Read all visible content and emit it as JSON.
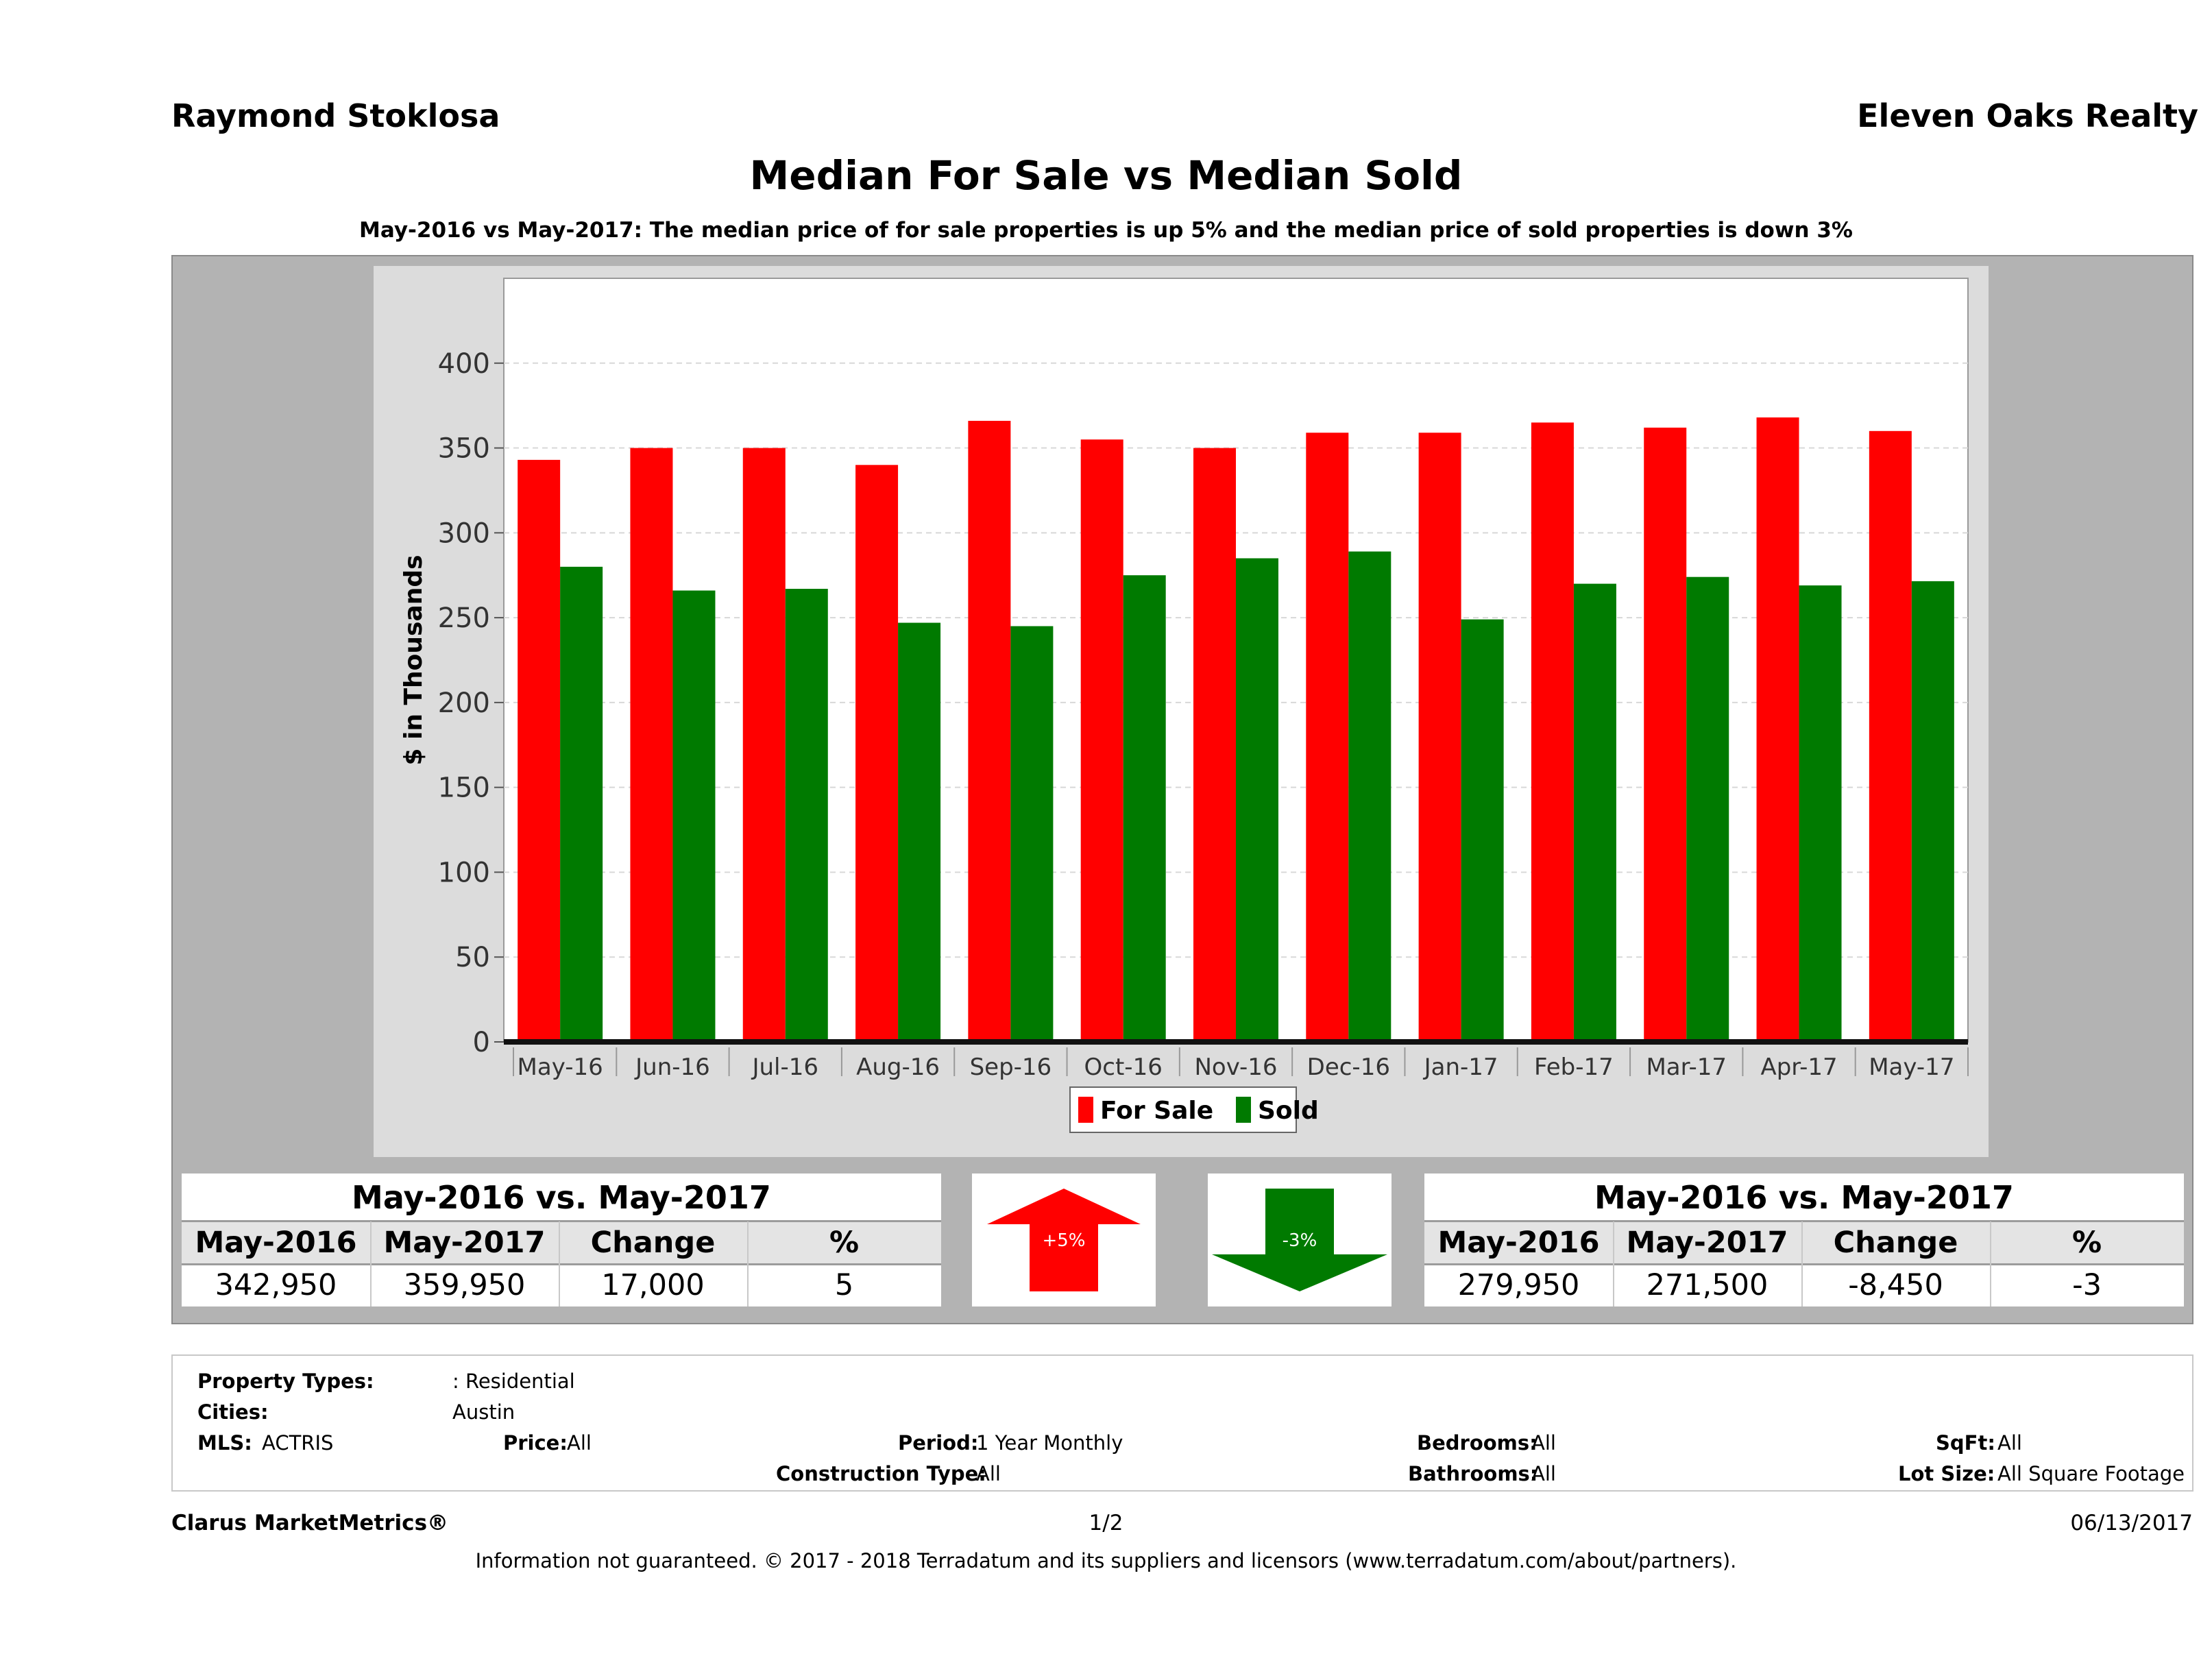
{
  "header": {
    "agent_name": "Raymond Stoklosa",
    "brokerage": "Eleven Oaks Realty"
  },
  "chart_data": {
    "type": "bar",
    "title": "Median For Sale vs Median Sold",
    "subtitle": "May-2016 vs May-2017: The median price of for sale properties is up 5% and the median price of sold properties is down 3%",
    "ylabel": "$ in Thousands",
    "xlabel": "",
    "ylim": [
      0,
      450
    ],
    "yticks": [
      0,
      50,
      100,
      150,
      200,
      250,
      300,
      350,
      400
    ],
    "grid": true,
    "legend_position": "bottom",
    "categories": [
      "May-16",
      "Jun-16",
      "Jul-16",
      "Aug-16",
      "Sep-16",
      "Oct-16",
      "Nov-16",
      "Dec-16",
      "Jan-17",
      "Feb-17",
      "Mar-17",
      "Apr-17",
      "May-17"
    ],
    "series": [
      {
        "name": "For Sale",
        "color": "#ff0000",
        "values": [
          343,
          350,
          350,
          340,
          366,
          355,
          350,
          359,
          359,
          365,
          362,
          368,
          360
        ]
      },
      {
        "name": "Sold",
        "color": "#007a00",
        "values": [
          280,
          266,
          267,
          247,
          245,
          275,
          285,
          289,
          249,
          270,
          274,
          269,
          271.5
        ]
      }
    ]
  },
  "for_sale_table": {
    "title": "May-2016 vs. May-2017",
    "headers": [
      "May-2016",
      "May-2017",
      "Change",
      "%"
    ],
    "values": [
      "342,950",
      "359,950",
      "17,000",
      "5"
    ]
  },
  "sold_table": {
    "title": "May-2016 vs. May-2017",
    "headers": [
      "May-2016",
      "May-2017",
      "Change",
      "%"
    ],
    "values": [
      "279,950",
      "271,500",
      "-8,450",
      "-3"
    ]
  },
  "arrows": {
    "up": {
      "label": "+5%",
      "color": "#ff0000",
      "icon": "arrow-up-icon"
    },
    "down": {
      "label": "-3%",
      "color": "#007a00",
      "icon": "arrow-down-icon"
    }
  },
  "criteria": {
    "property_types_label": "Property Types:",
    "property_types_value": ": Residential",
    "cities_label": "Cities:",
    "cities_value": "Austin",
    "mls_label": "MLS:",
    "mls_value": "ACTRIS",
    "price_label": "Price:",
    "price_value": "All",
    "period_label": "Period:",
    "period_value": "1 Year Monthly",
    "construction_label": "Construction Type:",
    "construction_value": "All",
    "bedrooms_label": "Bedrooms:",
    "bedrooms_value": "All",
    "bathrooms_label": "Bathrooms:",
    "bathrooms_value": "All",
    "sqft_label": "SqFt:",
    "sqft_value": "All",
    "lotsize_label": "Lot Size:",
    "lotsize_value": "All Square Footage"
  },
  "footer": {
    "product": "Clarus MarketMetrics®",
    "page": "1/2",
    "date": "06/13/2017",
    "disclaimer": "Information not guaranteed. © 2017 - 2018 Terradatum and its suppliers and licensors (www.terradatum.com/about/partners)."
  }
}
